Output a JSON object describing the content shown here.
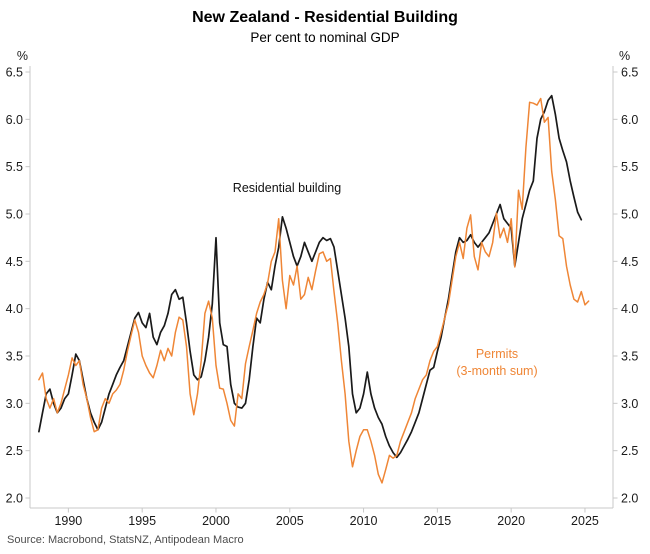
{
  "header": {
    "title": "New Zealand - Residential Building",
    "subtitle": "Per cent to nominal GDP"
  },
  "axes": {
    "left_unit": "%",
    "right_unit": "%"
  },
  "annotations": {
    "building_label": "Residential building",
    "permits_label_line1": "Permits",
    "permits_label_line2": "(3-month sum)"
  },
  "footer": {
    "source": "Source: Macrobond, StatsNZ, Antipodean Macro"
  },
  "colors": {
    "building_line": "#1a1a1a",
    "permits_line": "#ef8636",
    "axis_line": "#c8c8c8",
    "tick_text": "#1a1a1a",
    "source_text": "#4d4d4d",
    "background": "#ffffff"
  },
  "chart_data": {
    "type": "line",
    "title": "New Zealand - Residential Building",
    "subtitle": "Per cent to nominal GDP",
    "xlabel": "",
    "ylabel": "%",
    "ylim": [
      2.0,
      6.5
    ],
    "xlim": [
      1987.4,
      2026.9
    ],
    "yticks": [
      2.0,
      2.5,
      3.0,
      3.5,
      4.0,
      4.5,
      5.0,
      5.5,
      6.0,
      6.5
    ],
    "xticks": [
      1990,
      1995,
      2000,
      2005,
      2010,
      2015,
      2020,
      2025
    ],
    "grid": false,
    "legend_position": "inline-annotations",
    "x_unit": "decimal_year",
    "series": [
      {
        "name": "Residential building",
        "color": "#1a1a1a",
        "x_start": 1988.0,
        "x_step": 0.25,
        "values": [
          2.7,
          2.9,
          3.1,
          3.15,
          3.0,
          2.9,
          2.95,
          3.05,
          3.1,
          3.3,
          3.52,
          3.45,
          3.25,
          3.05,
          2.9,
          2.8,
          2.72,
          2.8,
          2.95,
          3.1,
          3.2,
          3.3,
          3.38,
          3.45,
          3.6,
          3.75,
          3.9,
          3.96,
          3.85,
          3.8,
          3.95,
          3.7,
          3.62,
          3.75,
          3.82,
          3.95,
          4.15,
          4.2,
          4.1,
          4.12,
          3.85,
          3.55,
          3.3,
          3.25,
          3.28,
          3.45,
          3.7,
          4.05,
          4.75,
          3.85,
          3.62,
          3.6,
          3.2,
          3.0,
          2.96,
          2.95,
          3.0,
          3.25,
          3.6,
          3.9,
          3.85,
          4.1,
          4.28,
          4.2,
          4.45,
          4.65,
          4.97,
          4.85,
          4.7,
          4.55,
          4.45,
          4.55,
          4.7,
          4.6,
          4.5,
          4.6,
          4.7,
          4.75,
          4.72,
          4.74,
          4.65,
          4.4,
          4.15,
          3.9,
          3.6,
          3.1,
          2.9,
          2.95,
          3.1,
          3.33,
          3.1,
          2.95,
          2.85,
          2.78,
          2.65,
          2.55,
          2.48,
          2.43,
          2.48,
          2.55,
          2.62,
          2.7,
          2.8,
          2.9,
          3.05,
          3.2,
          3.35,
          3.38,
          3.55,
          3.7,
          3.9,
          4.1,
          4.35,
          4.6,
          4.75,
          4.7,
          4.72,
          4.78,
          4.7,
          4.65,
          4.7,
          4.75,
          4.8,
          4.9,
          5.0,
          5.1,
          4.95,
          4.9,
          4.85,
          4.45,
          4.7,
          4.95,
          5.1,
          5.25,
          5.35,
          5.8,
          6.0,
          6.08,
          6.2,
          6.25,
          6.05,
          5.8,
          5.67,
          5.55,
          5.35,
          5.18,
          5.02,
          4.94
        ]
      },
      {
        "name": "Permits (3-month sum)",
        "color": "#ef8636",
        "x_start": 1988.0,
        "x_step": 0.25,
        "values": [
          3.25,
          3.32,
          3.05,
          2.95,
          3.05,
          2.9,
          3.0,
          3.15,
          3.3,
          3.48,
          3.4,
          3.45,
          3.2,
          3.05,
          2.85,
          2.7,
          2.72,
          2.95,
          3.05,
          3.0,
          3.1,
          3.14,
          3.2,
          3.35,
          3.55,
          3.72,
          3.88,
          3.75,
          3.5,
          3.4,
          3.32,
          3.27,
          3.4,
          3.56,
          3.45,
          3.58,
          3.5,
          3.75,
          3.91,
          3.88,
          3.6,
          3.1,
          2.88,
          3.1,
          3.45,
          3.95,
          4.08,
          3.9,
          3.4,
          3.16,
          3.15,
          3.0,
          2.82,
          2.76,
          3.1,
          3.05,
          3.42,
          3.6,
          3.77,
          3.95,
          4.07,
          4.15,
          4.27,
          4.5,
          4.6,
          4.95,
          4.3,
          4.0,
          4.35,
          4.25,
          4.45,
          4.1,
          4.15,
          4.33,
          4.2,
          4.4,
          4.58,
          4.6,
          4.5,
          4.53,
          4.18,
          3.85,
          3.45,
          3.1,
          2.6,
          2.33,
          2.5,
          2.65,
          2.72,
          2.72,
          2.6,
          2.45,
          2.25,
          2.16,
          2.3,
          2.45,
          2.42,
          2.45,
          2.6,
          2.7,
          2.8,
          2.9,
          3.05,
          3.15,
          3.25,
          3.3,
          3.45,
          3.55,
          3.6,
          3.75,
          3.9,
          4.05,
          4.3,
          4.55,
          4.7,
          4.53,
          4.85,
          4.99,
          4.55,
          4.41,
          4.7,
          4.6,
          4.55,
          4.7,
          5.01,
          4.75,
          4.85,
          4.7,
          4.95,
          4.44,
          5.25,
          5.05,
          5.7,
          6.18,
          6.17,
          6.15,
          6.22,
          5.97,
          6.02,
          5.45,
          5.15,
          4.77,
          4.74,
          4.45,
          4.25,
          4.1,
          4.07,
          4.18,
          4.04,
          4.08
        ]
      }
    ]
  }
}
